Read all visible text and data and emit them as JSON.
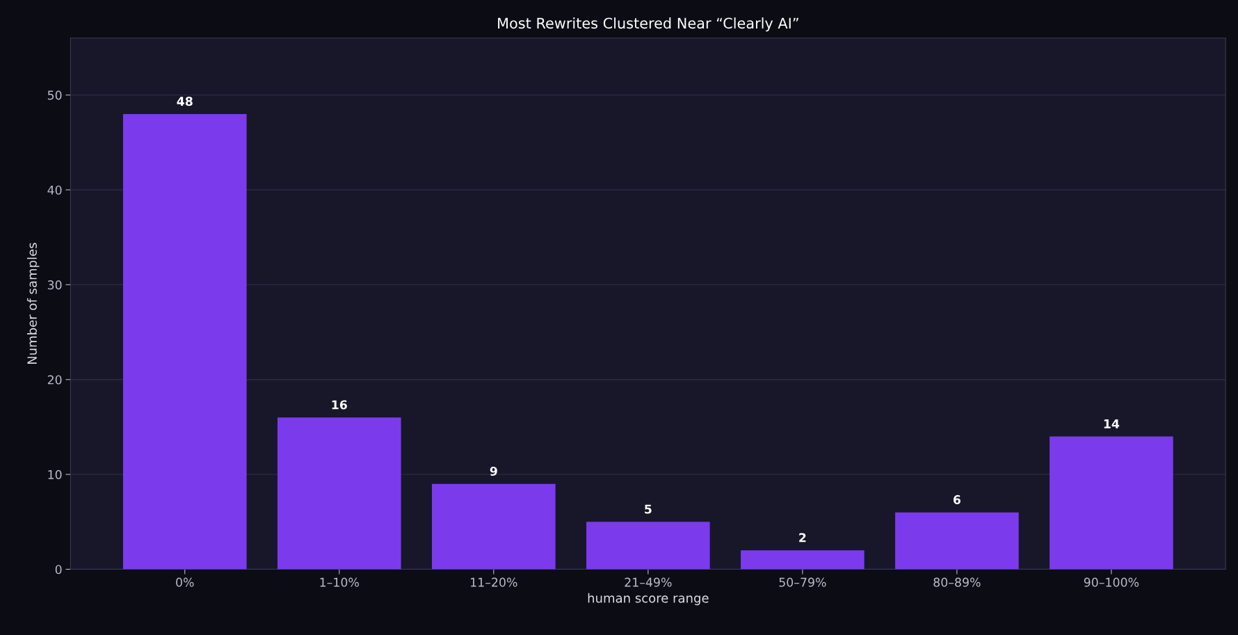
{
  "chart_data": {
    "type": "bar",
    "title": "Most Rewrites Clustered Near “Clearly AI”",
    "xlabel": "human score range",
    "ylabel": "Number of samples",
    "categories": [
      "0%",
      "1–10%",
      "11–20%",
      "21–49%",
      "50–79%",
      "80–89%",
      "90–100%"
    ],
    "values": [
      48,
      16,
      9,
      5,
      2,
      6,
      14
    ],
    "color": "#7c3aed",
    "ylim": [
      0,
      56
    ],
    "yticks": [
      0,
      10,
      20,
      30,
      40,
      50
    ],
    "grid": "y",
    "data_labels": true
  }
}
